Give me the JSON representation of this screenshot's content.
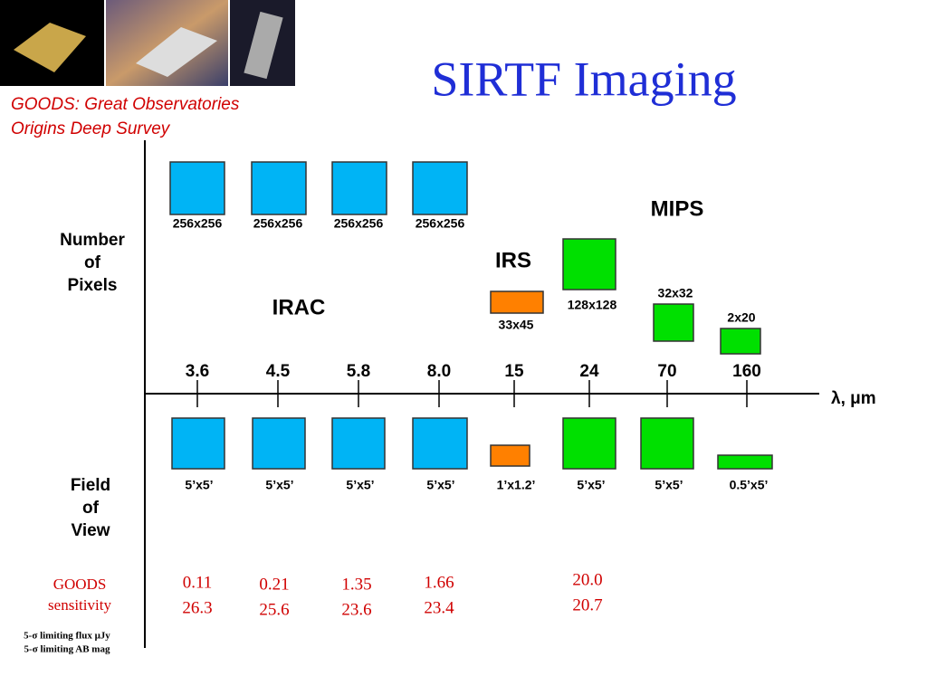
{
  "header": {
    "title": "SIRTF Imaging",
    "subtitle": [
      "GOODS: Great Observatories",
      "Origins Deep Survey"
    ]
  },
  "row_labels": {
    "pixels": [
      "Number",
      "of",
      "Pixels"
    ],
    "fov": [
      "Field",
      "of",
      "View"
    ]
  },
  "instruments": [
    "IRAC",
    "IRS",
    "MIPS"
  ],
  "axis_label": "λ, μm",
  "bands": [
    {
      "wavelength": "3.6",
      "pixels": "256x256",
      "fov": "5’x5’"
    },
    {
      "wavelength": "4.5",
      "pixels": "256x256",
      "fov": "5’x5’"
    },
    {
      "wavelength": "5.8",
      "pixels": "256x256",
      "fov": "5’x5’"
    },
    {
      "wavelength": "8.0",
      "pixels": "256x256",
      "fov": "5’x5’"
    },
    {
      "wavelength": "15",
      "pixels": "33x45",
      "fov": "1’x1.2’"
    },
    {
      "wavelength": "24",
      "pixels": "128x128",
      "fov": "5’x5’"
    },
    {
      "wavelength": "70",
      "pixels": "32x32",
      "fov": "5’x5’"
    },
    {
      "wavelength": "160",
      "pixels": "2x20",
      "fov": "0.5’x5’"
    }
  ],
  "sensitivity": {
    "label": [
      "GOODS",
      "sensitivity"
    ],
    "notes": [
      "5-σ limiting flux μJy",
      "5-σ limiting AB mag"
    ],
    "values": [
      {
        "flux": "0.11",
        "mag": "26.3"
      },
      {
        "flux": "0.21",
        "mag": "25.6"
      },
      {
        "flux": "1.35",
        "mag": "23.6"
      },
      {
        "flux": "1.66",
        "mag": "23.4"
      },
      {
        "flux": "20.0",
        "mag": "20.7"
      }
    ]
  }
}
